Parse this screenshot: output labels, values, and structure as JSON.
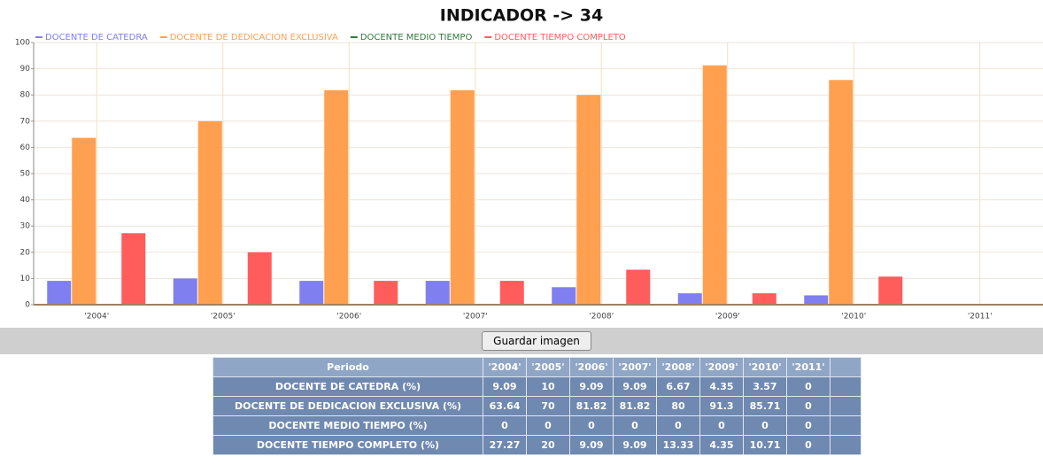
{
  "chart_data": {
    "type": "bar",
    "title": "INDICADOR -> 34",
    "categories": [
      "'2004'",
      "'2005'",
      "'2006'",
      "'2007'",
      "'2008'",
      "'2009'",
      "'2010'",
      "'2011'"
    ],
    "series": [
      {
        "name": "DOCENTE DE CATEDRA",
        "color": "#7f7fef",
        "values": [
          9.09,
          10,
          9.09,
          9.09,
          6.67,
          4.35,
          3.57,
          0
        ]
      },
      {
        "name": "DOCENTE DE DEDICACION EXCLUSIVA",
        "color": "#ffa050",
        "values": [
          63.64,
          70,
          81.82,
          81.82,
          80,
          91.3,
          85.71,
          0
        ]
      },
      {
        "name": "DOCENTE MEDIO TIEMPO",
        "color": "#2f7a3a",
        "values": [
          0,
          0,
          0,
          0,
          0,
          0,
          0,
          0
        ]
      },
      {
        "name": "DOCENTE TIEMPO COMPLETO",
        "color": "#ff5c5c",
        "values": [
          27.27,
          20,
          9.09,
          9.09,
          13.33,
          4.35,
          10.71,
          0
        ]
      }
    ],
    "ylim": [
      0,
      100
    ],
    "yticks": [
      0,
      10,
      20,
      30,
      40,
      50,
      60,
      70,
      80,
      90,
      100
    ],
    "grid": true,
    "legend": "top"
  },
  "button": {
    "label": "Guardar imagen"
  },
  "table": {
    "header": "Periodo",
    "rows": [
      "DOCENTE DE CATEDRA (%)",
      "DOCENTE DE DEDICACION EXCLUSIVA (%)",
      "DOCENTE MEDIO TIEMPO (%)",
      "DOCENTE TIEMPO COMPLETO (%)"
    ]
  }
}
